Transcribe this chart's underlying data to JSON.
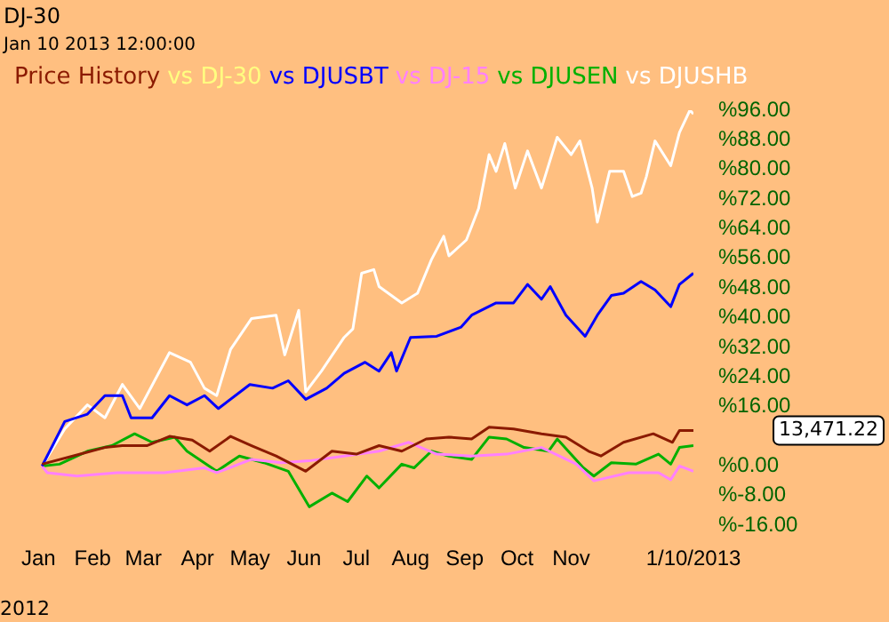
{
  "chart_data": {
    "type": "line",
    "title": "DJ-30",
    "subtitle": "Jan 10 2013 12:00:00",
    "xlim": [
      "2012-01-01",
      "2013-01-10"
    ],
    "ylim": [
      -16,
      96
    ],
    "xticks": [
      {
        "value": "2012-01-01",
        "label": "Jan"
      },
      {
        "value": "2012-02-01",
        "label": "Feb"
      },
      {
        "value": "2012-03-01",
        "label": "Mar"
      },
      {
        "value": "2012-04-01",
        "label": "Apr"
      },
      {
        "value": "2012-05-01",
        "label": "May"
      },
      {
        "value": "2012-06-01",
        "label": "Jun"
      },
      {
        "value": "2012-07-01",
        "label": "Jul"
      },
      {
        "value": "2012-08-01",
        "label": "Aug"
      },
      {
        "value": "2012-09-01",
        "label": "Sep"
      },
      {
        "value": "2012-10-01",
        "label": "Oct"
      },
      {
        "value": "2012-11-01",
        "label": "Nov"
      },
      {
        "value": "2013-01-10",
        "label": "1/10/2013"
      }
    ],
    "yticks": [
      {
        "value": 96,
        "label": "%96.00"
      },
      {
        "value": 88,
        "label": "%88.00"
      },
      {
        "value": 80,
        "label": "%80.00"
      },
      {
        "value": 72,
        "label": "%72.00"
      },
      {
        "value": 64,
        "label": "%64.00"
      },
      {
        "value": 56,
        "label": "%56.00"
      },
      {
        "value": 48,
        "label": "%48.00"
      },
      {
        "value": 40,
        "label": "%40.00"
      },
      {
        "value": 32,
        "label": "%32.00"
      },
      {
        "value": 24,
        "label": "%24.00"
      },
      {
        "value": 16,
        "label": "%16.00"
      },
      {
        "value": 0,
        "label": "%0.00"
      },
      {
        "value": -8,
        "label": "%-8.00"
      },
      {
        "value": -16,
        "label": "%-16.00"
      }
    ],
    "grid": false,
    "legend": "top left",
    "marker": "none",
    "line_style": "solid",
    "annotations": [
      "2012",
      "13,471.22"
    ],
    "series": [
      {
        "name": "Price History",
        "color": "#8b1a00",
        "x": [
          "2012-01-03",
          "2012-01-23",
          "2012-02-08",
          "2012-02-18",
          "2012-03-03",
          "2012-03-16",
          "2012-03-29",
          "2012-04-08",
          "2012-04-20",
          "2012-05-02",
          "2012-05-16",
          "2012-06-02",
          "2012-06-17",
          "2012-07-01",
          "2012-07-14",
          "2012-07-27",
          "2012-08-10",
          "2012-08-23",
          "2012-09-05",
          "2012-09-15",
          "2012-09-29",
          "2012-10-15",
          "2012-10-29",
          "2012-11-11",
          "2012-11-18",
          "2012-12-01",
          "2012-12-18",
          "2012-12-29",
          "2013-01-02",
          "2013-01-10"
        ],
        "values": [
          0.5,
          3,
          5,
          5.5,
          5.5,
          8,
          7,
          4,
          8,
          5.5,
          2.7,
          -1.4,
          4,
          3.2,
          5.5,
          4,
          7.3,
          7.8,
          7.3,
          10.5,
          10,
          8.7,
          7.8,
          4,
          2.7,
          6.4,
          8.7,
          6.4,
          9.6,
          9.6
        ]
      },
      {
        "name": "vs DJ-30",
        "color": "#ffff80"
      },
      {
        "name": "vs DJUSBT",
        "color": "#0000ff",
        "x": [
          "2012-01-03",
          "2012-01-09",
          "2012-01-16",
          "2012-01-29",
          "2012-02-08",
          "2012-02-18",
          "2012-02-23",
          "2012-03-06",
          "2012-03-16",
          "2012-03-26",
          "2012-04-05",
          "2012-04-13",
          "2012-05-01",
          "2012-05-14",
          "2012-05-23",
          "2012-06-02",
          "2012-06-14",
          "2012-06-24",
          "2012-07-06",
          "2012-07-14",
          "2012-07-21",
          "2012-07-24",
          "2012-08-01",
          "2012-08-16",
          "2012-08-30",
          "2012-09-05",
          "2012-09-19",
          "2012-09-29",
          "2012-10-07",
          "2012-10-15",
          "2012-10-20",
          "2012-10-29",
          "2012-11-09",
          "2012-11-16",
          "2012-11-24",
          "2012-12-01",
          "2012-12-11",
          "2012-12-19",
          "2012-12-28",
          "2013-01-02",
          "2013-01-10"
        ],
        "values": [
          0,
          5.5,
          12,
          14,
          19,
          19,
          13,
          13,
          19,
          16.5,
          19,
          15.5,
          22,
          21,
          23,
          18,
          21,
          25,
          28,
          25.6,
          30.6,
          25.6,
          34.7,
          35,
          37.5,
          40.7,
          44,
          44,
          49,
          45,
          48.4,
          40.7,
          35,
          40.7,
          46,
          46.6,
          49.8,
          47.5,
          43,
          49,
          52
        ]
      },
      {
        "name": "vs DJ-15",
        "color": "#ff80ff",
        "x": [
          "2012-01-03",
          "2012-01-06",
          "2012-01-23",
          "2012-02-15",
          "2012-03-13",
          "2012-04-05",
          "2012-04-12",
          "2012-05-02",
          "2012-05-19",
          "2012-06-04",
          "2012-06-24",
          "2012-07-14",
          "2012-07-31",
          "2012-08-16",
          "2012-09-05",
          "2012-09-25",
          "2012-10-15",
          "2012-11-04",
          "2012-11-14",
          "2012-12-04",
          "2012-12-21",
          "2012-12-28",
          "2013-01-02",
          "2013-01-10"
        ],
        "values": [
          0,
          -1.8,
          -2.7,
          -1.8,
          -1.8,
          -0.5,
          -1.8,
          1.8,
          0.9,
          1.4,
          2.7,
          4,
          6.4,
          3.2,
          2.7,
          3.2,
          5,
          0.5,
          -4,
          -1.8,
          -1.8,
          -3.7,
          0,
          -1.4
        ]
      },
      {
        "name": "vs DJUSEN",
        "color": "#00b000",
        "x": [
          "2012-01-03",
          "2012-01-13",
          "2012-01-29",
          "2012-02-12",
          "2012-02-25",
          "2012-03-06",
          "2012-03-19",
          "2012-03-26",
          "2012-04-12",
          "2012-04-25",
          "2012-05-09",
          "2012-05-23",
          "2012-06-04",
          "2012-06-17",
          "2012-06-26",
          "2012-07-07",
          "2012-07-14",
          "2012-07-27",
          "2012-08-03",
          "2012-08-13",
          "2012-08-23",
          "2012-09-05",
          "2012-09-15",
          "2012-09-25",
          "2012-10-05",
          "2012-10-19",
          "2012-10-24",
          "2012-11-08",
          "2012-11-14",
          "2012-11-24",
          "2012-12-08",
          "2012-12-21",
          "2012-12-28",
          "2013-01-02",
          "2013-01-10"
        ],
        "values": [
          0,
          0.5,
          4,
          5.5,
          8.7,
          6.4,
          7.8,
          4,
          -1.4,
          2.7,
          0.9,
          -1.4,
          -11,
          -7.3,
          -9.6,
          -2.7,
          -5.9,
          0.5,
          -0.5,
          4,
          2.7,
          1.8,
          7.8,
          7.3,
          5,
          4,
          7.3,
          -0.5,
          -2.7,
          0.9,
          0.5,
          3.2,
          0.5,
          5,
          5.5
        ]
      },
      {
        "name": "vs DJUSHB",
        "color": "#ffffff",
        "x": [
          "2012-01-03",
          "2012-01-16",
          "2012-01-29",
          "2012-02-08",
          "2012-02-18",
          "2012-02-28",
          "2012-03-16",
          "2012-03-28",
          "2012-04-05",
          "2012-04-12",
          "2012-04-20",
          "2012-05-02",
          "2012-05-16",
          "2012-05-21",
          "2012-05-29",
          "2012-06-02",
          "2012-06-11",
          "2012-06-24",
          "2012-06-29",
          "2012-07-04",
          "2012-07-11",
          "2012-07-14",
          "2012-07-27",
          "2012-08-05",
          "2012-08-13",
          "2012-08-20",
          "2012-08-23",
          "2012-09-02",
          "2012-09-09",
          "2012-09-15",
          "2012-09-19",
          "2012-09-24",
          "2012-09-30",
          "2012-10-07",
          "2012-10-15",
          "2012-10-24",
          "2012-11-01",
          "2012-11-06",
          "2012-11-13",
          "2012-11-16",
          "2012-11-23",
          "2012-12-01",
          "2012-12-06",
          "2012-12-11",
          "2012-12-14",
          "2012-12-19",
          "2012-12-28",
          "2013-01-02",
          "2013-01-08",
          "2013-01-10"
        ],
        "values": [
          0,
          10,
          16.5,
          13,
          22,
          15.5,
          30.6,
          28,
          21,
          19,
          31.5,
          39.8,
          40.7,
          30,
          42,
          20,
          25.6,
          34.7,
          37,
          52,
          53,
          48.4,
          44,
          46.6,
          55.7,
          62,
          56.7,
          61,
          69.5,
          84,
          79.5,
          87,
          75,
          85,
          75,
          88.7,
          84,
          87.7,
          75,
          65.8,
          79.5,
          79.5,
          72.7,
          73.6,
          78,
          87.7,
          81,
          90,
          96,
          95
        ]
      }
    ]
  }
}
